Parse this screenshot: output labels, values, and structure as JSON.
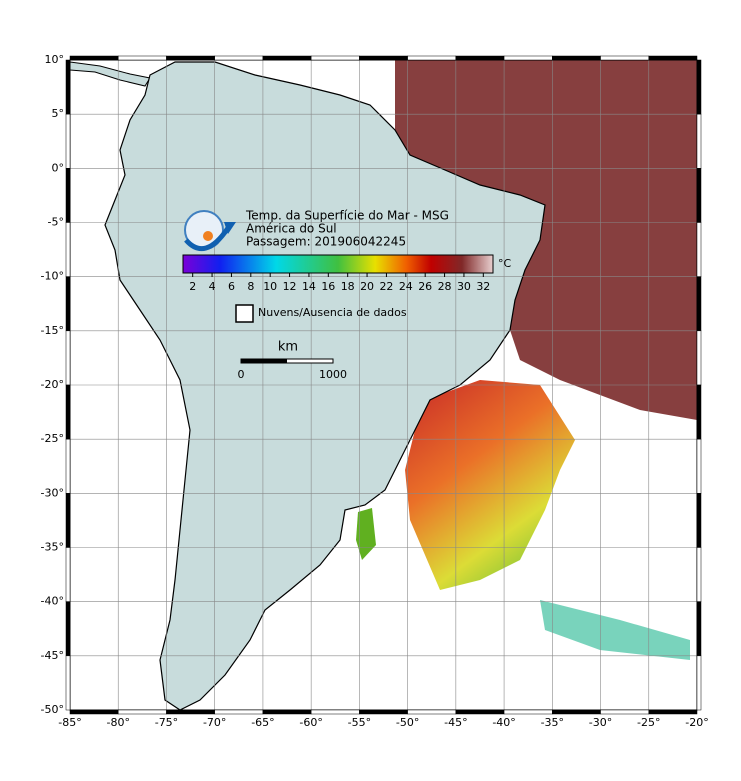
{
  "map": {
    "title_lines": [
      "Temp. da Superfície do Mar - MSG",
      "América do Sul",
      "Passagem: 201906042245"
    ],
    "x_axis": {
      "lim": [
        -85,
        -20
      ],
      "ticks": [
        {
          "value": -85,
          "label": "-85°"
        },
        {
          "value": -80,
          "label": "-80°"
        },
        {
          "value": -75,
          "label": "-75°"
        },
        {
          "value": -70,
          "label": "-70°"
        },
        {
          "value": -65,
          "label": "-65°"
        },
        {
          "value": -60,
          "label": "-60°"
        },
        {
          "value": -55,
          "label": "-55°"
        },
        {
          "value": -50,
          "label": "-50°"
        },
        {
          "value": -45,
          "label": "-45°"
        },
        {
          "value": -40,
          "label": "-40°"
        },
        {
          "value": -35,
          "label": "-35°"
        },
        {
          "value": -30,
          "label": "-30°"
        },
        {
          "value": -25,
          "label": "-25°"
        },
        {
          "value": -20,
          "label": "-20°"
        }
      ]
    },
    "y_axis": {
      "lim": [
        -50,
        10
      ],
      "ticks": [
        {
          "value": 10,
          "label": "10°"
        },
        {
          "value": 5,
          "label": "5°"
        },
        {
          "value": 0,
          "label": "0°"
        },
        {
          "value": -5,
          "label": "-5°"
        },
        {
          "value": -10,
          "label": "-10°"
        },
        {
          "value": -15,
          "label": "-15°"
        },
        {
          "value": -20,
          "label": "-20°"
        },
        {
          "value": -25,
          "label": "-25°"
        },
        {
          "value": -30,
          "label": "-30°"
        },
        {
          "value": -35,
          "label": "-35°"
        },
        {
          "value": -40,
          "label": "-40°"
        },
        {
          "value": -45,
          "label": "-45°"
        },
        {
          "value": -50,
          "label": "-50°"
        }
      ]
    },
    "colorbar": {
      "lim": [
        1,
        33
      ],
      "ticks": [
        2,
        4,
        6,
        8,
        10,
        12,
        14,
        16,
        18,
        20,
        22,
        24,
        26,
        28,
        30,
        32
      ],
      "unit": "°C"
    },
    "legend": {
      "label": "Nuvens/Ausencia de dados"
    },
    "scale_bar": {
      "title": "km",
      "labels": [
        "0",
        "1000"
      ]
    }
  }
}
